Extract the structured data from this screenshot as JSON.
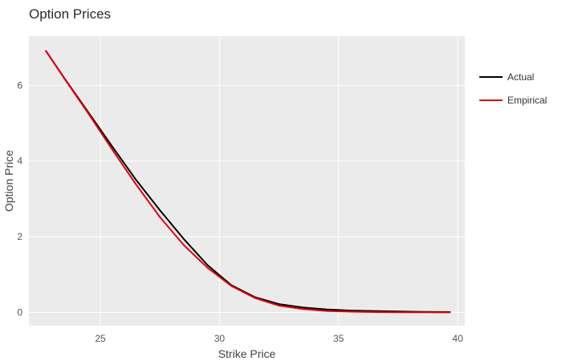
{
  "chart_data": {
    "type": "line",
    "title": "Option Prices",
    "xlabel": "Strike Price",
    "ylabel": "Option Price",
    "xlim": [
      22.0,
      40.3
    ],
    "ylim": [
      -0.35,
      7.3
    ],
    "xticks": [
      25,
      30,
      35,
      40
    ],
    "yticks": [
      0,
      2,
      4,
      6
    ],
    "grid": true,
    "legend_position": "right",
    "series": [
      {
        "name": "Actual",
        "color": "#000000",
        "x": [
          22.7,
          23.5,
          24.5,
          25.5,
          26.5,
          27.5,
          28.5,
          29.5,
          30.5,
          31.5,
          32.5,
          33.5,
          34.5,
          35.5,
          36.5,
          37.5,
          38.5,
          39.7
        ],
        "y": [
          6.92,
          6.18,
          5.28,
          4.38,
          3.5,
          2.7,
          1.94,
          1.25,
          0.72,
          0.4,
          0.22,
          0.13,
          0.08,
          0.05,
          0.035,
          0.025,
          0.015,
          0.01
        ]
      },
      {
        "name": "Empirical",
        "color": "#e0000f",
        "x": [
          22.7,
          23.5,
          24.5,
          25.5,
          26.5,
          27.5,
          28.5,
          29.5,
          30.5,
          31.5,
          32.5,
          33.5,
          34.5,
          35.5,
          36.5,
          37.5,
          38.5,
          39.7
        ],
        "y": [
          6.92,
          6.17,
          5.25,
          4.3,
          3.38,
          2.52,
          1.78,
          1.18,
          0.7,
          0.38,
          0.18,
          0.09,
          0.04,
          0.02,
          0.01,
          0.005,
          0.003,
          0.002
        ]
      }
    ]
  }
}
